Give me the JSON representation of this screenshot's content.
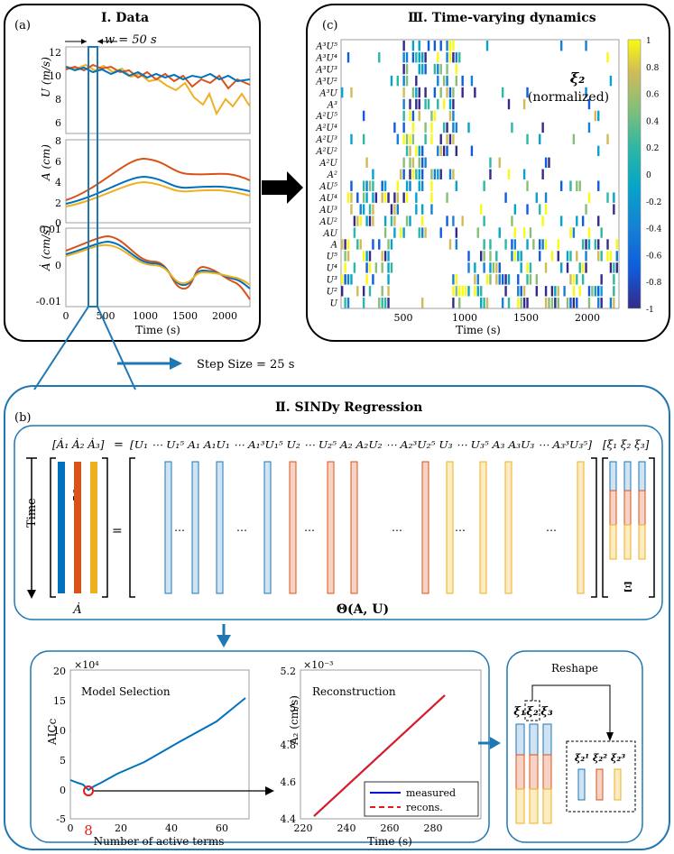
{
  "panels": {
    "a": {
      "label": "(a)",
      "title": "Ⅰ. Data",
      "window": "w = 50 s",
      "u_axis": "U (m/s)",
      "a_axis": "A (cm)",
      "adot_axis": "Ȧ (cm/s)",
      "xlabel": "Time (s)",
      "u_ticks": [
        "12",
        "10",
        "8",
        "6"
      ],
      "a_ticks": [
        "8",
        "6",
        "4",
        "2",
        "0"
      ],
      "adot_ticks": [
        "0.01",
        "0",
        "-0.01"
      ],
      "x_ticks": [
        "0",
        "500",
        "1000",
        "1500",
        "2000"
      ]
    },
    "c": {
      "label": "(c)",
      "title": "Ⅲ. Time-varying dynamics",
      "xi_label": "ξ₂",
      "xi_sub": "(normalized)",
      "xlabel": "Time (s)",
      "x_ticks": [
        "500",
        "1000",
        "1500",
        "2000"
      ],
      "colorbar_ticks": [
        "1",
        "0.8",
        "0.6",
        "0.4",
        "0.2",
        "0",
        "-0.2",
        "-0.4",
        "-0.6",
        "-0.8",
        "-1"
      ],
      "row_labels": [
        "A³U⁵",
        "A³U⁴",
        "A³U³",
        "A³U²",
        "A³U",
        "A³",
        "A²U⁵",
        "A²U⁴",
        "A²U³",
        "A²U²",
        "A²U",
        "A²",
        "AU⁵",
        "AU⁴",
        "AU³",
        "AU²",
        "AU",
        "A",
        "U⁵",
        "U⁴",
        "U³",
        "U²",
        "U"
      ]
    },
    "b": {
      "label": "(b)",
      "title": "Ⅱ. SINDy Regression",
      "step": "Step Size = 25 s",
      "lhs": "[Ȧ₁ Ȧ₂ Ȧ₃]",
      "eq": "=",
      "rhs": "[U₁ ⋯ U₁⁵ A₁ A₁U₁ ⋯ A₁³U₁⁵ U₂ ⋯ U₂⁵ A₂ A₂U₂ ⋯ A₂³U₂⁵ U₃ ⋯ U₃⁵ A₃ A₃U₃ ⋯ A₃³U₃⁵]",
      "xi": "[ξ₁ ξ₂ ξ₃]",
      "time_label": "Time",
      "w_label": "w = 50 s",
      "adot_label": "Ȧ",
      "theta_label": "Θ(A, U)",
      "xi_big": "Ξ",
      "dots": "⋯"
    },
    "model_selection": {
      "title": "Model Selection",
      "ylabel": "AICc",
      "xlabel": "Number of active terms",
      "exp": "×10⁴",
      "y_ticks": [
        "20",
        "15",
        "10",
        "5",
        "0",
        "-5"
      ],
      "x_ticks": [
        "0",
        "20",
        "40",
        "60"
      ],
      "selected": "8"
    },
    "reconstruction": {
      "title": "Reconstruction",
      "ylabel": "Ȧ₂ (cm/s)",
      "xlabel": "Time (s)",
      "exp": "×10⁻³",
      "y_ticks": [
        "5.2",
        "5",
        "4.8",
        "4.6",
        "4.4"
      ],
      "x_ticks": [
        "220",
        "240",
        "260",
        "280"
      ],
      "legend": [
        "measured",
        "recons."
      ]
    },
    "reshape": {
      "title": "Reshape",
      "labels": [
        "ξ₁",
        "ξ₂",
        "ξ₃"
      ],
      "sub_labels": [
        "ξ₂¹",
        "ξ₂²",
        "ξ₂³"
      ]
    }
  },
  "colors": {
    "blue": "#0072BD",
    "orange": "#D95319",
    "yellow": "#EDB120",
    "frame": "#1f77b4",
    "red": "#e41a1c"
  }
}
